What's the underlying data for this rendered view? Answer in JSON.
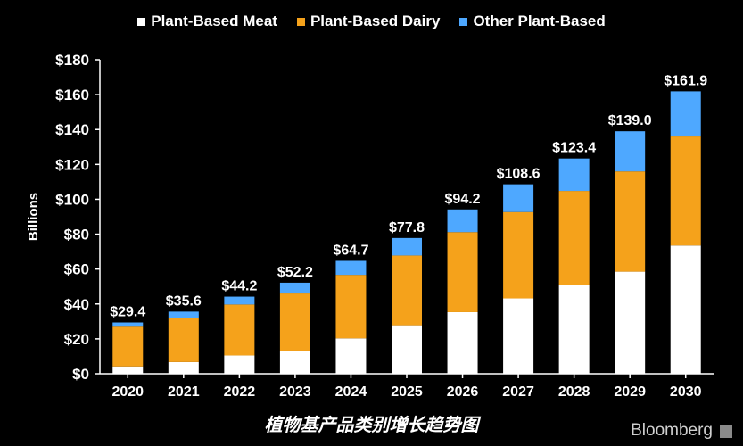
{
  "chart_data": {
    "type": "bar",
    "stacked": true,
    "categories": [
      "2020",
      "2021",
      "2022",
      "2023",
      "2024",
      "2025",
      "2026",
      "2027",
      "2028",
      "2029",
      "2030"
    ],
    "series": [
      {
        "name": "Plant-Based Meat",
        "color": "#ffffff",
        "values": [
          4.2,
          6.7,
          10.5,
          13.3,
          20.3,
          27.8,
          35.3,
          43.2,
          50.8,
          58.5,
          73.5
        ]
      },
      {
        "name": "Plant-Based Dairy",
        "color": "#f5a21b",
        "values": [
          22.8,
          25.4,
          29.2,
          32.7,
          36.4,
          40.0,
          45.9,
          49.5,
          54.0,
          57.5,
          62.5
        ]
      },
      {
        "name": "Other Plant-Based",
        "color": "#4ea8ff",
        "values": [
          2.4,
          3.5,
          4.5,
          6.2,
          8.0,
          10.0,
          13.0,
          15.9,
          18.6,
          23.0,
          25.9
        ]
      }
    ],
    "totals_labels": [
      "$29.4",
      "$35.6",
      "$44.2",
      "$52.2",
      "$64.7",
      "$77.8",
      "$94.2",
      "$108.6",
      "$123.4",
      "$139.0",
      "$161.9"
    ],
    "ylabel": "Billions",
    "ylim": [
      0,
      180
    ],
    "yticks": [
      0,
      20,
      40,
      60,
      80,
      100,
      120,
      140,
      160,
      180
    ],
    "ytick_labels": [
      "$0",
      "$20",
      "$40",
      "$60",
      "$80",
      "$100",
      "$120",
      "$140",
      "$160",
      "$180"
    ],
    "legend_position": "top",
    "grid": false
  },
  "caption": "植物基产品类别增长趋势图",
  "brand": "Bloomberg"
}
